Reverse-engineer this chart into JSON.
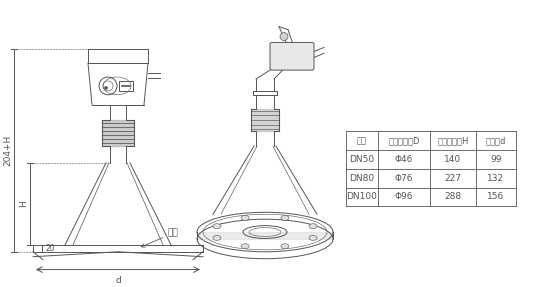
{
  "bg_color": "#ffffff",
  "lc": "#555555",
  "lc_dark": "#222222",
  "table_headers": [
    "法兰",
    "喇叭口直径D",
    "喇叭口高度H",
    "四孔盘d"
  ],
  "table_rows": [
    [
      "DN50",
      "Φ46",
      "140",
      "99"
    ],
    [
      "DN80",
      "Φ76",
      "227",
      "132"
    ],
    [
      "DN100",
      "Φ96",
      "288",
      "156"
    ]
  ],
  "dim_204H": "204+H",
  "dim_H": "H",
  "dim_20": "20",
  "dim_d": "d",
  "dim_flange": "法兰",
  "font_size_table": 6.5,
  "font_size_dim": 6.5
}
